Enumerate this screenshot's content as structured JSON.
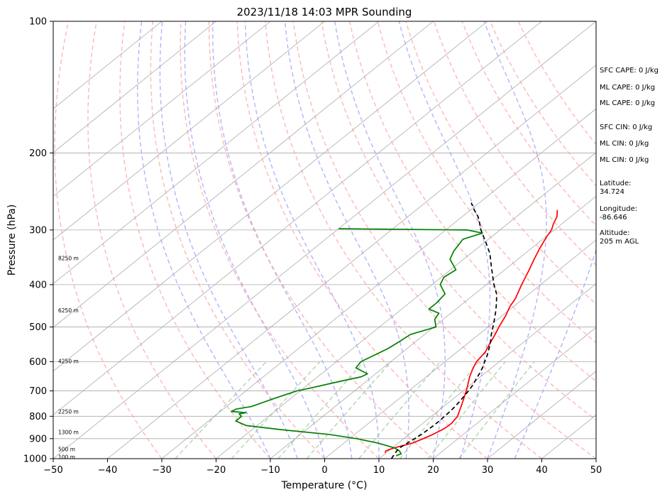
{
  "chart_data": {
    "type": "line",
    "title": "2023/11/18 14:03 MPR Sounding",
    "xlabel": "Temperature (°C)",
    "ylabel": "Pressure (hPa)",
    "xlim": [
      -50,
      50
    ],
    "ylim": [
      1000,
      100
    ],
    "y_scale": "log",
    "skew": true,
    "grid": true,
    "x_ticks": [
      -50,
      -40,
      -30,
      -20,
      -10,
      0,
      10,
      20,
      30,
      40,
      50
    ],
    "y_ticks": [
      1000,
      900,
      800,
      700,
      600,
      500,
      400,
      300,
      200,
      100
    ],
    "series": [
      {
        "role": "temperature",
        "color": "#ff0000",
        "pressure": [
          970,
          960,
          950,
          940,
          930,
          920,
          900,
          880,
          860,
          850,
          830,
          800,
          780,
          750,
          720,
          700,
          680,
          650,
          620,
          600,
          570,
          550,
          520,
          500,
          470,
          450,
          430,
          400,
          370,
          350,
          330,
          310,
          300,
          290,
          280,
          270
        ],
        "temperature": [
          9.8,
          9.5,
          10.0,
          10.8,
          11.8,
          12.7,
          13.6,
          14.4,
          15.0,
          15.2,
          15.3,
          14.8,
          14.0,
          12.8,
          11.5,
          10.6,
          9.6,
          8.0,
          6.6,
          5.8,
          5.2,
          4.3,
          3.0,
          2.0,
          0.6,
          -0.6,
          -1.5,
          -3.5,
          -5.5,
          -7.0,
          -8.5,
          -9.9,
          -10.5,
          -11.6,
          -12.5,
          -14.0
        ]
      },
      {
        "role": "dewpoint",
        "color": "#008000",
        "pressure": [
          985,
          975,
          960,
          945,
          930,
          920,
          900,
          880,
          860,
          840,
          820,
          800,
          790,
          785,
          780,
          770,
          760,
          730,
          700,
          690,
          670,
          650,
          640,
          620,
          600,
          580,
          560,
          540,
          520,
          500,
          480,
          465,
          455,
          440,
          420,
          400,
          385,
          370,
          350,
          335,
          315,
          305,
          300,
          298
        ],
        "temperature": [
          12.5,
          13.0,
          12.0,
          10.4,
          7.8,
          6.0,
          1.3,
          -4.8,
          -14.0,
          -22.0,
          -25.0,
          -25.0,
          -26.0,
          -25.0,
          -28.0,
          -27.6,
          -25.4,
          -23.2,
          -20.6,
          -18.8,
          -15.6,
          -12.0,
          -11.5,
          -15.0,
          -15.5,
          -14.5,
          -13.5,
          -13.0,
          -12.6,
          -9.6,
          -11.6,
          -12.2,
          -15.0,
          -15.0,
          -15.5,
          -18.5,
          -19.5,
          -19.0,
          -22.5,
          -23.7,
          -24.7,
          -22.5,
          -26.0,
          -50.0
        ]
      },
      {
        "role": "parcel",
        "color": "#000000",
        "pressure": [
          1000,
          980,
          960,
          940,
          920,
          900,
          880,
          860,
          840,
          820,
          800,
          780,
          760,
          740,
          720,
          700,
          680,
          660,
          640,
          620,
          600,
          580,
          560,
          540,
          520,
          500,
          480,
          460,
          440,
          420,
          400,
          380,
          360,
          340,
          320,
          300,
          290,
          280,
          270,
          260
        ],
        "temperature": [
          12.3,
          11.9,
          11.5,
          11.4,
          11.7,
          12.0,
          12.3,
          12.4,
          12.5,
          12.5,
          12.4,
          12.3,
          12.1,
          11.8,
          11.4,
          11.0,
          10.5,
          9.8,
          9.1,
          8.3,
          7.3,
          6.3,
          5.1,
          3.8,
          2.3,
          0.9,
          -0.6,
          -2.2,
          -4.0,
          -6.0,
          -8.6,
          -11.1,
          -13.7,
          -16.4,
          -19.8,
          -23.5,
          -25.2,
          -27.0,
          -29.3,
          -31.5
        ]
      }
    ],
    "height_labels": [
      {
        "label": "100 m",
        "pressure": 990
      },
      {
        "label": "500 m",
        "pressure": 950
      },
      {
        "label": "1300 m",
        "pressure": 870
      },
      {
        "label": "2250 m",
        "pressure": 780
      },
      {
        "label": "4250 m",
        "pressure": 598
      },
      {
        "label": "6250 m",
        "pressure": 458
      },
      {
        "label": "8250 m",
        "pressure": 348
      }
    ],
    "side_panel": [
      "SFC CAPE: 0 J/kg",
      "ML CAPE: 0 J/kg",
      "ML CAPE: 0 J/kg",
      "SFC CIN: 0 J/kg",
      "ML CIN: 0 J/kg",
      "ML CIN: 0 J/kg",
      "Latitude:",
      "34.724",
      "Longitude:",
      "-86.646",
      "Altitude:",
      "205 m AGL"
    ],
    "isotherm_temps": [
      -130,
      -120,
      -110,
      -100,
      -90,
      -80,
      -70,
      -60,
      -50,
      -40,
      -30,
      -20,
      -10,
      0,
      10,
      20,
      30,
      40,
      50
    ],
    "dry_adiabat_thetas_c": [
      -30,
      -20,
      -10,
      0,
      10,
      20,
      30,
      40,
      50,
      60,
      70,
      80,
      90,
      100,
      110,
      120,
      130
    ],
    "moist_adiabat_starts_c": [
      -10,
      -5,
      0,
      5,
      10,
      15,
      20,
      25,
      30,
      35
    ],
    "mixing_ratios_gkg": [
      0.4,
      1,
      2,
      3,
      6,
      10,
      14,
      20
    ],
    "colors": {
      "isotherm": "#aaaaaa",
      "grid": "#aaaaaa",
      "dry_adiabat": "#ff9999",
      "moist_adiabat": "#9999ff",
      "mixing_ratio": "#99cc99"
    }
  }
}
